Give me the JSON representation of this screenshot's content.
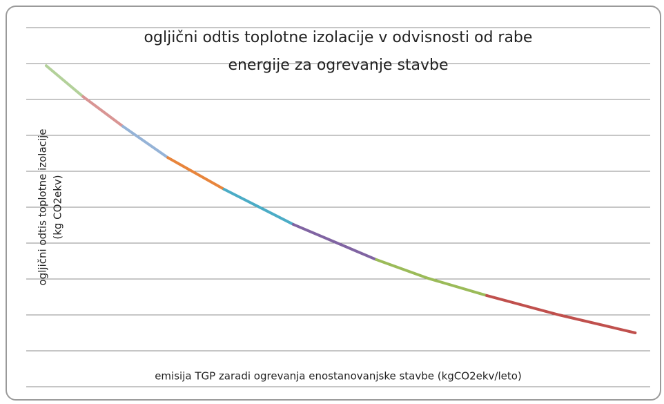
{
  "chart_data": {
    "type": "line",
    "title": [
      "ogljični odtis toplotne izolacije v odvisnosti od rabe",
      "energije za ogrevanje stavbe"
    ],
    "y_label": [
      "ogljični odtis toplotne izolacije",
      "(kg CO2ekv)"
    ],
    "x_label": "emisija TGP zaradi ogrevanja enostanovanjske stavbe (kgCO2ekv/leto)",
    "xlim": [
      0,
      10
    ],
    "ylim": [
      0,
      10
    ],
    "yticks": [
      0,
      1,
      2,
      3,
      4,
      5,
      6,
      7,
      8,
      9,
      10
    ],
    "grid": true,
    "series": [
      {
        "color": "#b3d19a",
        "x": [
          0.32,
          0.91
        ],
        "values": [
          8.94,
          8.08
        ]
      },
      {
        "color": "#d99594",
        "x": [
          0.91,
          1.55
        ],
        "values": [
          8.08,
          7.25
        ]
      },
      {
        "color": "#95b3d7",
        "x": [
          1.55,
          2.27
        ],
        "values": [
          7.25,
          6.38
        ]
      },
      {
        "color": "#e8853c",
        "x": [
          2.27,
          3.17
        ],
        "values": [
          6.38,
          5.5
        ]
      },
      {
        "color": "#4bacc6",
        "x": [
          3.17,
          4.28
        ],
        "values": [
          5.5,
          4.52
        ]
      },
      {
        "color": "#8064a2",
        "x": [
          4.28,
          5.61
        ],
        "values": [
          4.52,
          3.54
        ]
      },
      {
        "color": "#9bbb59",
        "x": [
          5.61,
          6.44,
          7.38
        ],
        "values": [
          3.54,
          3.02,
          2.54
        ]
      },
      {
        "color": "#c0504d",
        "x": [
          7.38,
          8.54,
          9.76
        ],
        "values": [
          2.54,
          2.0,
          1.5
        ]
      }
    ]
  }
}
